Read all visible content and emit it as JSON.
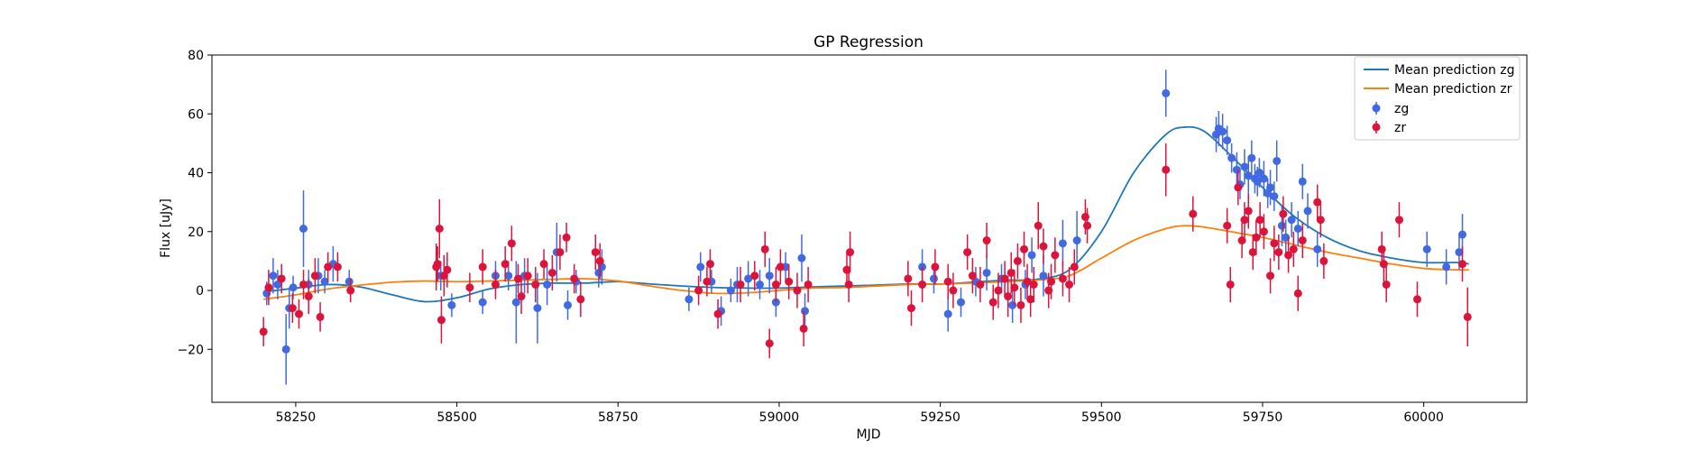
{
  "chart_data": {
    "type": "scatter",
    "title": "GP Regression",
    "xlabel": "MJD",
    "ylabel": "Flux [uJy]",
    "xlim": [
      58120,
      60160
    ],
    "ylim": [
      -38,
      80
    ],
    "xticks": [
      58250,
      58500,
      58750,
      59000,
      59250,
      59500,
      59750,
      60000
    ],
    "yticks": [
      -20,
      0,
      20,
      40,
      60,
      80
    ],
    "grid": false,
    "legend_position": "top-right",
    "legend": [
      "Mean prediction zg",
      "Mean prediction zr",
      "zg",
      "zr"
    ],
    "lines": [
      {
        "name": "Mean prediction zg",
        "color": "#1f77b4",
        "x": [
          58200,
          58250,
          58300,
          58350,
          58400,
          58450,
          58500,
          58550,
          58600,
          58650,
          58700,
          58750,
          58800,
          58850,
          58900,
          58950,
          59000,
          59050,
          59100,
          59150,
          59200,
          59250,
          59300,
          59350,
          59400,
          59450,
          59500,
          59550,
          59600,
          59630,
          59660,
          59700,
          59750,
          59800,
          59850,
          59900,
          59950,
          60000,
          60050,
          60070
        ],
        "y": [
          -0.5,
          0.8,
          2.0,
          1.2,
          -1.5,
          -3.8,
          -2.5,
          0.5,
          2.0,
          2.5,
          2.5,
          3.0,
          2.2,
          1.5,
          1.0,
          0.8,
          0.8,
          1.2,
          1.5,
          1.8,
          2.2,
          2.2,
          2.8,
          3.5,
          3.8,
          7.0,
          20.0,
          40.0,
          53.0,
          55.5,
          54.0,
          46.0,
          35.0,
          25.0,
          18.0,
          13.5,
          11.0,
          9.5,
          9.5,
          9.0
        ]
      },
      {
        "name": "Mean prediction zr",
        "color": "#ff7f0e",
        "x": [
          58200,
          58250,
          58300,
          58350,
          58400,
          58450,
          58500,
          58550,
          58600,
          58650,
          58700,
          58750,
          58800,
          58850,
          58900,
          58950,
          59000,
          59050,
          59100,
          59150,
          59200,
          59250,
          59300,
          59350,
          59400,
          59450,
          59500,
          59550,
          59600,
          59630,
          59660,
          59700,
          59750,
          59800,
          59850,
          59900,
          59950,
          60000,
          60050,
          60070
        ],
        "y": [
          -3.0,
          -1.5,
          0.5,
          1.8,
          2.8,
          3.2,
          3.0,
          3.2,
          3.5,
          3.8,
          4.0,
          3.2,
          1.5,
          0.0,
          -1.0,
          -0.8,
          0.0,
          0.8,
          1.0,
          1.5,
          2.0,
          2.2,
          2.5,
          3.0,
          3.5,
          5.0,
          11.0,
          17.0,
          21.0,
          22.0,
          21.5,
          20.0,
          18.0,
          15.5,
          13.0,
          11.0,
          9.0,
          7.5,
          7.0,
          7.0
        ]
      }
    ],
    "series": [
      {
        "name": "zg",
        "color": "#4169e1",
        "x": [
          58205,
          58215,
          58222,
          58235,
          58240,
          58246,
          58262,
          58270,
          58285,
          58295,
          58308,
          58333,
          58475,
          58492,
          58540,
          58560,
          58580,
          58592,
          58605,
          58625,
          58640,
          58655,
          58672,
          58685,
          58720,
          58725,
          58860,
          58878,
          58895,
          58910,
          58925,
          58935,
          58952,
          58970,
          58985,
          58995,
          59010,
          59035,
          59040,
          59222,
          59240,
          59262,
          59282,
          59305,
          59322,
          59345,
          59362,
          59382,
          59392,
          59410,
          59440,
          59462,
          59600,
          59678,
          59682,
          59688,
          59695,
          59702,
          59710,
          59715,
          59722,
          59728,
          59733,
          59738,
          59742,
          59745,
          59752,
          59758,
          59762,
          59768,
          59772,
          59780,
          59786,
          59795,
          59805,
          59812,
          59820,
          59835,
          60005,
          60035,
          60055,
          60060
        ],
        "y": [
          -1,
          5,
          2,
          -20,
          -6,
          1,
          21,
          2,
          5,
          3,
          9,
          3,
          5,
          -5,
          -4,
          5,
          5,
          -4,
          5,
          -6,
          2,
          13,
          -5,
          3,
          6,
          8,
          -3,
          8,
          3,
          -7,
          0,
          2,
          4,
          2,
          5,
          -4,
          8,
          11,
          -7,
          8,
          4,
          -8,
          -4,
          3,
          6,
          4,
          -5,
          2,
          12,
          5,
          16,
          17,
          67,
          53,
          55,
          54,
          51,
          45,
          41,
          36,
          42,
          39,
          45,
          38,
          37,
          40,
          38,
          33,
          35,
          32,
          44,
          22,
          18,
          24,
          21,
          37,
          27,
          14,
          14,
          8,
          13,
          19
        ],
        "err": [
          4,
          6,
          5,
          12,
          7,
          4,
          13,
          5,
          6,
          4,
          6,
          4,
          5,
          4,
          4,
          5,
          5,
          14,
          6,
          12,
          7,
          10,
          5,
          4,
          5,
          6,
          4,
          5,
          4,
          5,
          4,
          6,
          6,
          5,
          6,
          5,
          5,
          8,
          6,
          6,
          5,
          6,
          5,
          5,
          6,
          5,
          6,
          5,
          6,
          7,
          8,
          10,
          8,
          6,
          6,
          6,
          5,
          5,
          6,
          5,
          6,
          6,
          6,
          5,
          5,
          5,
          6,
          5,
          6,
          5,
          7,
          7,
          6,
          6,
          6,
          6,
          6,
          6,
          6,
          6,
          6,
          7
        ]
      },
      {
        "name": "zr",
        "color": "#dc143c",
        "x": [
          58200,
          58208,
          58228,
          58245,
          58255,
          58262,
          58270,
          58280,
          58288,
          58300,
          58315,
          58335,
          58468,
          58470,
          58473,
          58476,
          58480,
          58485,
          58520,
          58540,
          58560,
          58575,
          58585,
          58595,
          58600,
          58610,
          58622,
          58635,
          58648,
          58660,
          58670,
          58682,
          58692,
          58715,
          58722,
          58875,
          58888,
          58893,
          58905,
          58940,
          58962,
          58978,
          58985,
          58995,
          59002,
          59015,
          59028,
          59038,
          59045,
          59105,
          59108,
          59110,
          59200,
          59205,
          59222,
          59242,
          59262,
          59270,
          59292,
          59300,
          59312,
          59322,
          59332,
          59340,
          59350,
          59355,
          59360,
          59365,
          59370,
          59375,
          59380,
          59385,
          59390,
          59395,
          59402,
          59410,
          59418,
          59422,
          59428,
          59440,
          59450,
          59458,
          59475,
          59478,
          59600,
          59642,
          59695,
          59700,
          59712,
          59718,
          59722,
          59728,
          59735,
          59740,
          59746,
          59752,
          59762,
          59768,
          59775,
          59782,
          59790,
          59798,
          59805,
          59812,
          59835,
          59840,
          59845,
          59935,
          59938,
          59942,
          59962,
          59990,
          60060,
          60068
        ],
        "y": [
          -14,
          1,
          4,
          -6,
          -8,
          2,
          -2,
          5,
          -9,
          8,
          8,
          0,
          8,
          9,
          21,
          -10,
          5,
          7,
          1,
          8,
          2,
          9,
          16,
          4,
          -2,
          5,
          2,
          9,
          6,
          13,
          18,
          4,
          -3,
          13,
          10,
          0,
          3,
          9,
          -8,
          2,
          5,
          14,
          -18,
          2,
          8,
          3,
          0,
          -13,
          2,
          7,
          2,
          13,
          4,
          -6,
          2,
          8,
          3,
          0,
          13,
          5,
          2,
          17,
          -4,
          0,
          4,
          -2,
          6,
          1,
          10,
          -5,
          14,
          3,
          -3,
          2,
          22,
          15,
          0,
          3,
          12,
          4,
          2,
          8,
          25,
          22,
          41,
          26,
          22,
          2,
          35,
          17,
          24,
          27,
          13,
          18,
          24,
          20,
          5,
          16,
          13,
          26,
          12,
          14,
          -1,
          17,
          30,
          24,
          10,
          14,
          9,
          2,
          24,
          -3,
          9,
          -9
        ],
        "err": [
          5,
          6,
          5,
          5,
          5,
          5,
          6,
          6,
          5,
          5,
          5,
          4,
          8,
          6,
          10,
          8,
          7,
          6,
          5,
          6,
          5,
          6,
          6,
          5,
          6,
          6,
          6,
          5,
          6,
          6,
          5,
          5,
          6,
          6,
          6,
          5,
          5,
          5,
          5,
          6,
          5,
          6,
          5,
          6,
          6,
          6,
          6,
          6,
          6,
          6,
          6,
          7,
          6,
          6,
          6,
          6,
          6,
          6,
          6,
          6,
          6,
          6,
          6,
          6,
          6,
          7,
          7,
          6,
          6,
          6,
          6,
          6,
          6,
          6,
          8,
          6,
          6,
          6,
          6,
          6,
          6,
          6,
          6,
          6,
          9,
          6,
          6,
          6,
          6,
          6,
          6,
          6,
          6,
          6,
          6,
          6,
          6,
          6,
          6,
          6,
          6,
          6,
          6,
          6,
          6,
          6,
          6,
          6,
          6,
          6,
          6,
          6,
          6,
          10
        ]
      }
    ]
  }
}
